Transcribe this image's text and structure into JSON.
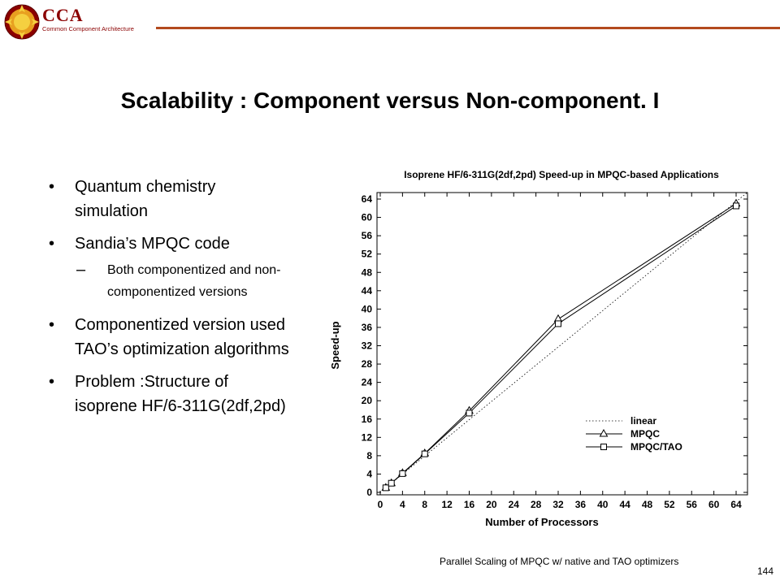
{
  "header": {
    "logo_text": "CCA",
    "logo_subtitle": "Common Component Architecture"
  },
  "slide": {
    "title": "Scalability : Component versus Non-component. I",
    "bullets": [
      "Quantum chemistry simulation",
      "Sandia’s MPQC code",
      "Componentized version used TAO’s optimization algorithms",
      "Problem :Structure of isoprene HF/6-311G(2df,2pd)"
    ],
    "sub_bullet": "Both componentized and non-componentized versions",
    "caption": "Parallel Scaling of MPQC w/ native and TAO optimizers",
    "page_number": "144"
  },
  "colors": {
    "logo_red": "#8b0000",
    "header_rule": "#b34a1e"
  },
  "chart_data": {
    "type": "line",
    "title": "Isoprene HF/6-311G(2df,2pd) Speed-up in MPQC-based Applications",
    "xlabel": "Number of Processors",
    "ylabel": "Speed-up",
    "xlim": [
      0,
      64
    ],
    "ylim": [
      0,
      64
    ],
    "xticks": [
      0,
      4,
      8,
      12,
      16,
      20,
      24,
      28,
      32,
      36,
      40,
      44,
      48,
      52,
      56,
      60,
      64
    ],
    "yticks": [
      0,
      4,
      8,
      12,
      16,
      20,
      24,
      28,
      32,
      36,
      40,
      44,
      48,
      52,
      56,
      60,
      64
    ],
    "legend_position": "lower-right",
    "grid": false,
    "series": [
      {
        "name": "linear",
        "style": "dotted",
        "marker": "none",
        "x": [
          1,
          66
        ],
        "y": [
          1,
          66
        ]
      },
      {
        "name": "MPQC",
        "style": "solid",
        "marker": "triangle",
        "x": [
          1,
          2,
          4,
          8,
          16,
          32,
          64
        ],
        "y": [
          1,
          2,
          4.2,
          8.5,
          17.8,
          37.8,
          63
        ]
      },
      {
        "name": "MPQC/TAO",
        "style": "solid",
        "marker": "square",
        "x": [
          1,
          2,
          4,
          8,
          16,
          32,
          64
        ],
        "y": [
          1,
          2,
          4.1,
          8.4,
          17.3,
          36.8,
          62.5
        ]
      }
    ]
  }
}
